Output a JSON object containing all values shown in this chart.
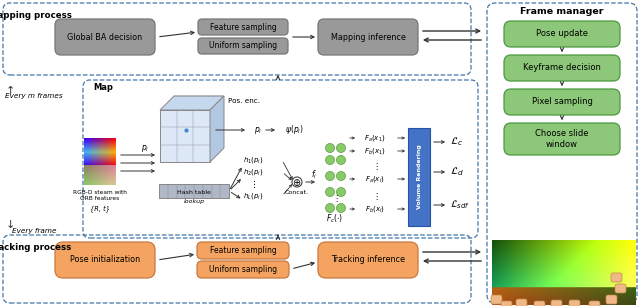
{
  "fig_width": 6.4,
  "fig_height": 3.06,
  "bg_color": "#ffffff",
  "gray_box_color": "#999999",
  "gray_box_edge": "#777777",
  "orange_box_color": "#f4a460",
  "orange_box_edge": "#c87840",
  "green_box_color": "#8dc87a",
  "green_box_edge": "#4a9940",
  "blue_bar_color": "#4472c4",
  "light_gray_table": "#b0b8c8",
  "dashed_border": "#4477aa",
  "title_top": "Frame manager",
  "mapping_label": "Mapping process",
  "tracking_label": "Tracking process",
  "global_ba": "Global BA decision",
  "feature_sampling": "Feature sampling",
  "uniform_sampling": "Uniform sampling",
  "mapping_inference": "Mapping inference",
  "pose_init": "Pose initialization",
  "tracking_inference": "Tracking inference",
  "pose_update": "Pose update",
  "keyframe_decision": "Keyframe decision",
  "pixel_sampling": "Pixel sampling",
  "choose_slide": "Choose slide\nwindow",
  "map_label": "Map",
  "pos_enc": "Pos. enc.",
  "lookup": "lookup",
  "hash_table": "Hash table",
  "concat": "Concat.",
  "volume_rendering": "Volume Rendering",
  "every_m": "Every m frames",
  "every_frame": "Every frame"
}
